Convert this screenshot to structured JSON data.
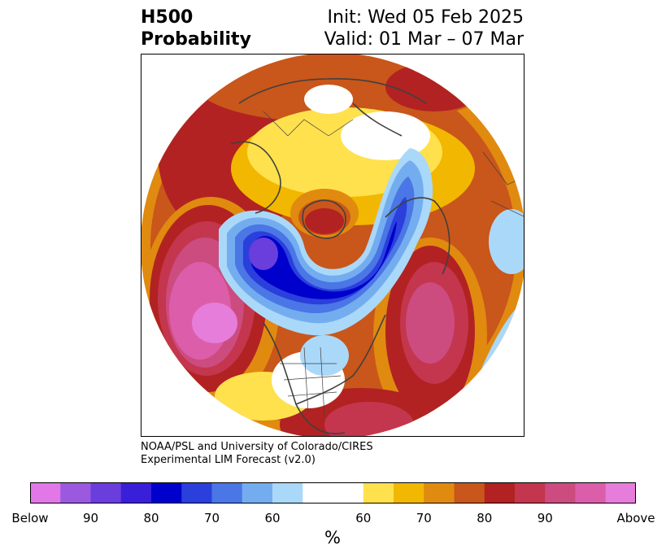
{
  "title": {
    "variable": "H500",
    "product": "Probability",
    "init": "Init: Wed 05 Feb 2025",
    "valid": "Valid: 01 Mar – 07 Mar"
  },
  "credit": {
    "line1": "NOAA/PSL and University of Colorado/CIRES",
    "line2": "Experimental LIM Forecast (v2.0)"
  },
  "map": {
    "projection": "north-polar-stereographic",
    "ocean_color": "#ffffff",
    "coastline_color": "#404040"
  },
  "colorbar": {
    "units": "%",
    "colors": [
      "#e277e8",
      "#9b59e0",
      "#6a3ddd",
      "#3a1fd9",
      "#0000cc",
      "#2a3fdc",
      "#4a76e6",
      "#74adef",
      "#aad8f9",
      "#ffffff",
      "#ffe14d",
      "#f2b700",
      "#e08a10",
      "#c9561a",
      "#b22222",
      "#c4364e",
      "#cc4c80",
      "#dc5eaa",
      "#e67ddb"
    ],
    "labels": [
      "Below",
      "90",
      "80",
      "70",
      "60",
      "60",
      "70",
      "80",
      "90",
      "Above"
    ]
  }
}
